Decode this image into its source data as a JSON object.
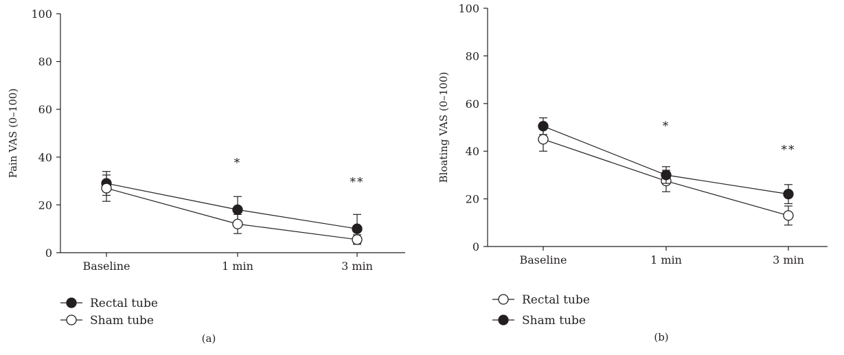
{
  "chart_data": [
    {
      "type": "line",
      "panel_label": "(a)",
      "ylabel": "Pain VAS (0–100)",
      "xlabel": "",
      "categories": [
        "Baseline",
        "1 min",
        "3 min"
      ],
      "ylim": [
        0,
        100
      ],
      "yticks": [
        0,
        20,
        40,
        60,
        80,
        100
      ],
      "legend_position": "bottom-left",
      "grid": false,
      "series": [
        {
          "name": "Rectal tube",
          "marker": "filled",
          "values": [
            29,
            18,
            10
          ],
          "error": [
            5,
            5.5,
            6
          ]
        },
        {
          "name": "Sham tube",
          "marker": "open",
          "values": [
            27,
            12,
            5.5
          ],
          "error": [
            5.5,
            4,
            2
          ]
        }
      ],
      "annotations": [
        {
          "category": "1 min",
          "text": "*",
          "y": 36
        },
        {
          "category": "3 min",
          "text": "**",
          "y": 28
        }
      ]
    },
    {
      "type": "line",
      "panel_label": "(b)",
      "ylabel": "Bloating VAS (0–100)",
      "xlabel": "",
      "categories": [
        "Baseline",
        "1 min",
        "3 min"
      ],
      "ylim": [
        0,
        100
      ],
      "yticks": [
        0,
        20,
        40,
        60,
        80,
        100
      ],
      "legend_position": "bottom-left",
      "grid": false,
      "series": [
        {
          "name": "Rectal tube",
          "marker": "open",
          "values": [
            45,
            27.5,
            13
          ],
          "error": [
            5,
            4.5,
            4
          ]
        },
        {
          "name": "Sham tube",
          "marker": "filled",
          "values": [
            50.5,
            30,
            22
          ],
          "error": [
            3.5,
            3.5,
            4
          ]
        }
      ],
      "annotations": [
        {
          "category": "1 min",
          "text": "*",
          "y": 49
        },
        {
          "category": "3 min",
          "text": "**",
          "y": 39
        }
      ]
    }
  ]
}
